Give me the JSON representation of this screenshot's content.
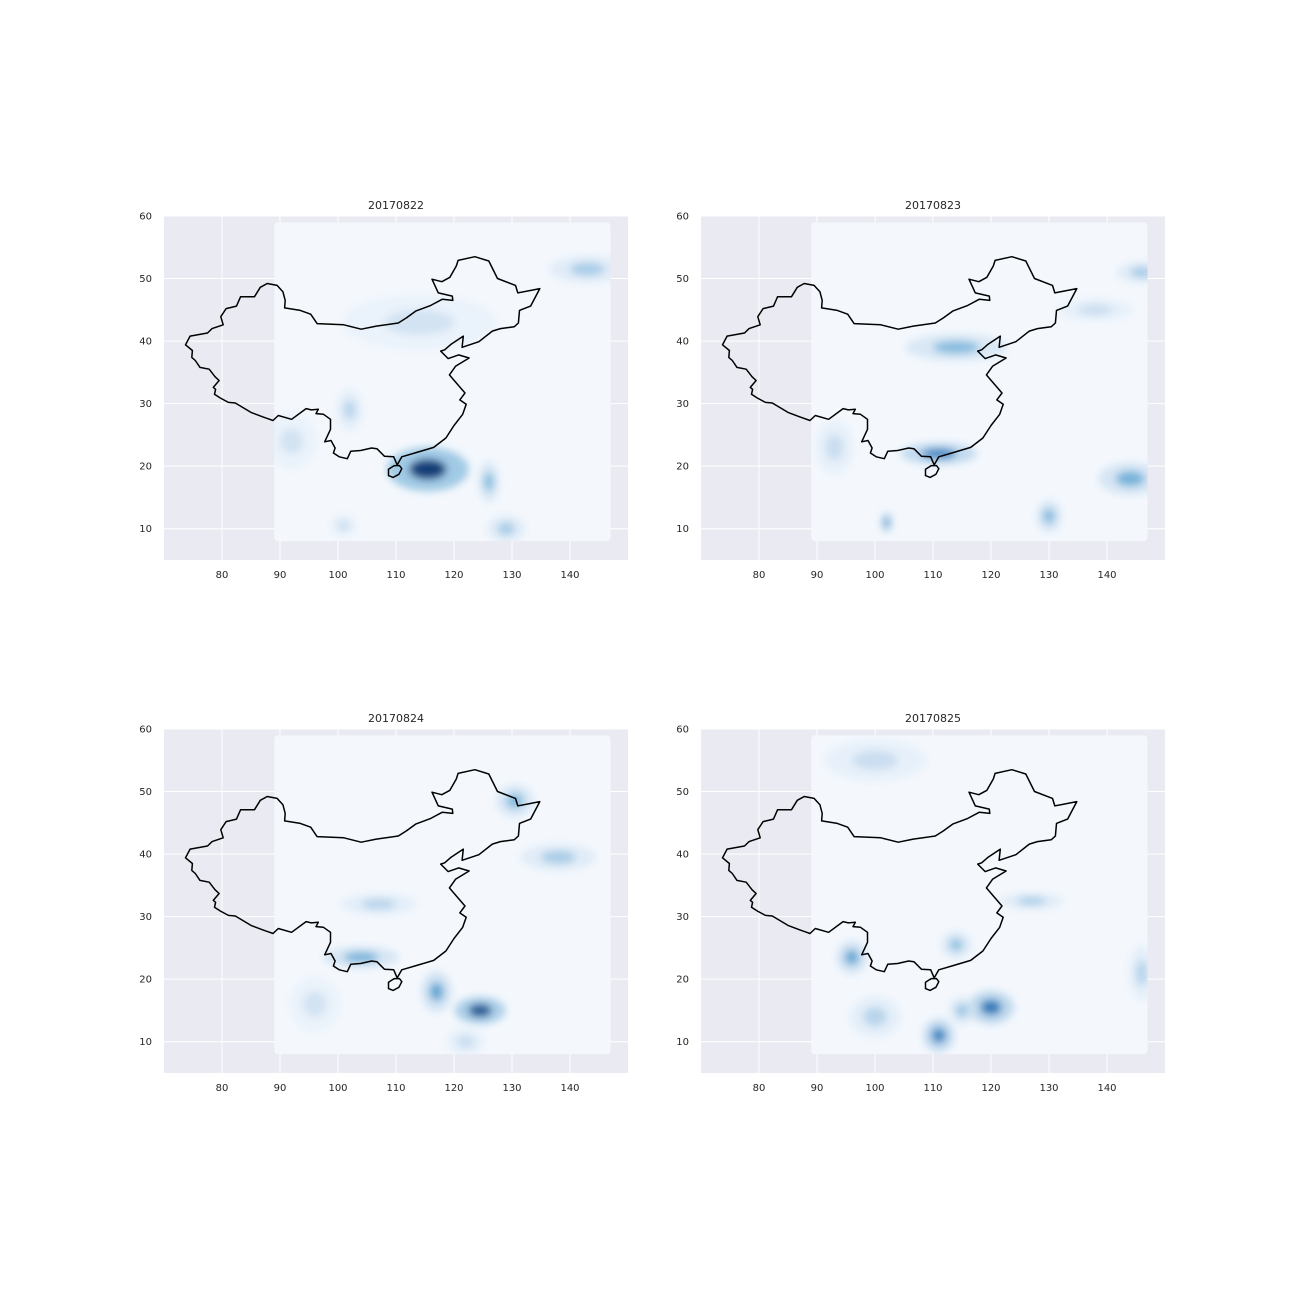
{
  "figure": {
    "background": "#ffffff",
    "plot_background": "#eaeaf2",
    "grid_color": "#ffffff",
    "colormap": "Blues"
  },
  "chart_data": [
    {
      "type": "heatmap",
      "title": "20170822",
      "xlabel": "",
      "ylabel": "",
      "xlim": [
        70,
        150
      ],
      "ylim": [
        5,
        60
      ],
      "xticks": [
        80,
        90,
        100,
        110,
        120,
        130,
        140
      ],
      "yticks": [
        10,
        20,
        30,
        40,
        50,
        60
      ],
      "grid": true,
      "data_extent": {
        "lon": [
          89,
          147
        ],
        "lat": [
          8,
          59
        ]
      },
      "hotspots": [
        {
          "lon": 115.5,
          "lat": 19.5,
          "intensity": 1.0,
          "spread_lon": 3.2,
          "spread_lat": 1.6
        },
        {
          "lon": 126,
          "lat": 17.5,
          "intensity": 0.45,
          "spread_lon": 0.8,
          "spread_lat": 1.5
        },
        {
          "lon": 143,
          "lat": 51.5,
          "intensity": 0.35,
          "spread_lon": 3,
          "spread_lat": 1
        },
        {
          "lon": 102,
          "lat": 29,
          "intensity": 0.3,
          "spread_lon": 1,
          "spread_lat": 1.5
        },
        {
          "lon": 114,
          "lat": 43,
          "intensity": 0.2,
          "spread_lon": 6,
          "spread_lat": 2
        },
        {
          "lon": 129,
          "lat": 10,
          "intensity": 0.35,
          "spread_lon": 1.5,
          "spread_lat": 1
        },
        {
          "lon": 101,
          "lat": 10.5,
          "intensity": 0.25,
          "spread_lon": 1,
          "spread_lat": 0.8
        },
        {
          "lon": 92,
          "lat": 24,
          "intensity": 0.2,
          "spread_lon": 2,
          "spread_lat": 2
        }
      ]
    },
    {
      "type": "heatmap",
      "title": "20170823",
      "xlabel": "",
      "ylabel": "",
      "xlim": [
        70,
        150
      ],
      "ylim": [
        5,
        60
      ],
      "xticks": [
        80,
        90,
        100,
        110,
        120,
        130,
        140
      ],
      "yticks": [
        10,
        20,
        30,
        40,
        50,
        60
      ],
      "grid": true,
      "data_extent": {
        "lon": [
          89,
          147
        ],
        "lat": [
          8,
          59
        ]
      },
      "hotspots": [
        {
          "lon": 111,
          "lat": 22,
          "intensity": 0.7,
          "spread_lon": 3,
          "spread_lat": 0.8
        },
        {
          "lon": 102,
          "lat": 11,
          "intensity": 0.6,
          "spread_lon": 0.5,
          "spread_lat": 0.8
        },
        {
          "lon": 114,
          "lat": 39,
          "intensity": 0.45,
          "spread_lon": 4,
          "spread_lat": 1
        },
        {
          "lon": 144,
          "lat": 18,
          "intensity": 0.5,
          "spread_lon": 2.5,
          "spread_lat": 1.2
        },
        {
          "lon": 130,
          "lat": 12,
          "intensity": 0.45,
          "spread_lon": 1,
          "spread_lat": 1.2
        },
        {
          "lon": 146,
          "lat": 51,
          "intensity": 0.35,
          "spread_lon": 2,
          "spread_lat": 0.8
        },
        {
          "lon": 138,
          "lat": 45,
          "intensity": 0.25,
          "spread_lon": 3,
          "spread_lat": 0.8
        },
        {
          "lon": 93,
          "lat": 23,
          "intensity": 0.25,
          "spread_lon": 1.5,
          "spread_lat": 2
        }
      ]
    },
    {
      "type": "heatmap",
      "title": "20170824",
      "xlabel": "",
      "ylabel": "",
      "xlim": [
        70,
        150
      ],
      "ylim": [
        5,
        60
      ],
      "xticks": [
        80,
        90,
        100,
        110,
        120,
        130,
        140
      ],
      "yticks": [
        10,
        20,
        30,
        40,
        50,
        60
      ],
      "grid": true,
      "data_extent": {
        "lon": [
          89,
          147
        ],
        "lat": [
          8,
          59
        ]
      },
      "hotspots": [
        {
          "lon": 124.5,
          "lat": 15,
          "intensity": 0.9,
          "spread_lon": 2,
          "spread_lat": 1
        },
        {
          "lon": 117,
          "lat": 18,
          "intensity": 0.55,
          "spread_lon": 1.2,
          "spread_lat": 1.5
        },
        {
          "lon": 104,
          "lat": 23.5,
          "intensity": 0.5,
          "spread_lon": 3,
          "spread_lat": 0.8
        },
        {
          "lon": 130.5,
          "lat": 48.5,
          "intensity": 0.45,
          "spread_lon": 1.5,
          "spread_lat": 1.2
        },
        {
          "lon": 138,
          "lat": 39.5,
          "intensity": 0.35,
          "spread_lon": 3,
          "spread_lat": 1
        },
        {
          "lon": 107,
          "lat": 32,
          "intensity": 0.3,
          "spread_lon": 3,
          "spread_lat": 0.8
        },
        {
          "lon": 122,
          "lat": 10,
          "intensity": 0.25,
          "spread_lon": 1.5,
          "spread_lat": 1
        },
        {
          "lon": 96,
          "lat": 16,
          "intensity": 0.2,
          "spread_lon": 2,
          "spread_lat": 2
        }
      ]
    },
    {
      "type": "heatmap",
      "title": "20170825",
      "xlabel": "",
      "ylabel": "",
      "xlim": [
        70,
        150
      ],
      "ylim": [
        5,
        60
      ],
      "xticks": [
        80,
        90,
        100,
        110,
        120,
        130,
        140
      ],
      "yticks": [
        10,
        20,
        30,
        40,
        50,
        60
      ],
      "grid": true,
      "data_extent": {
        "lon": [
          89,
          147
        ],
        "lat": [
          8,
          59
        ]
      },
      "hotspots": [
        {
          "lon": 120,
          "lat": 15.5,
          "intensity": 0.75,
          "spread_lon": 1.8,
          "spread_lat": 1.2
        },
        {
          "lon": 111,
          "lat": 11,
          "intensity": 0.7,
          "spread_lon": 1.2,
          "spread_lat": 1.2
        },
        {
          "lon": 96,
          "lat": 23.5,
          "intensity": 0.55,
          "spread_lon": 1.2,
          "spread_lat": 1.2
        },
        {
          "lon": 114,
          "lat": 25.5,
          "intensity": 0.4,
          "spread_lon": 1.2,
          "spread_lat": 1
        },
        {
          "lon": 115,
          "lat": 15,
          "intensity": 0.4,
          "spread_lon": 1,
          "spread_lat": 1
        },
        {
          "lon": 127,
          "lat": 32.5,
          "intensity": 0.35,
          "spread_lon": 2.5,
          "spread_lat": 0.6
        },
        {
          "lon": 146,
          "lat": 21,
          "intensity": 0.3,
          "spread_lon": 1,
          "spread_lat": 2
        },
        {
          "lon": 100,
          "lat": 14,
          "intensity": 0.3,
          "spread_lon": 2,
          "spread_lat": 1.5
        },
        {
          "lon": 100,
          "lat": 55,
          "intensity": 0.25,
          "spread_lon": 4,
          "spread_lat": 1.5
        }
      ]
    }
  ],
  "map_outline": {
    "name": "china-border",
    "color": "#000000",
    "lon_lat": [
      [
        73.7,
        39.4
      ],
      [
        74.5,
        40.8
      ],
      [
        77.5,
        41.3
      ],
      [
        78.3,
        42.0
      ],
      [
        80.2,
        42.6
      ],
      [
        79.8,
        43.9
      ],
      [
        80.7,
        45.2
      ],
      [
        82.5,
        45.6
      ],
      [
        83.2,
        47.1
      ],
      [
        85.6,
        47.1
      ],
      [
        86.6,
        48.6
      ],
      [
        87.8,
        49.2
      ],
      [
        89.5,
        48.9
      ],
      [
        90.5,
        47.9
      ],
      [
        90.9,
        46.5
      ],
      [
        90.8,
        45.3
      ],
      [
        93.5,
        44.9
      ],
      [
        95.3,
        44.3
      ],
      [
        96.4,
        42.8
      ],
      [
        101.0,
        42.6
      ],
      [
        104.0,
        41.9
      ],
      [
        106.6,
        42.4
      ],
      [
        110.4,
        42.9
      ],
      [
        111.8,
        43.7
      ],
      [
        113.4,
        44.8
      ],
      [
        116.0,
        45.7
      ],
      [
        118.0,
        46.7
      ],
      [
        119.8,
        46.5
      ],
      [
        119.7,
        47.2
      ],
      [
        117.3,
        47.7
      ],
      [
        116.2,
        49.9
      ],
      [
        117.9,
        49.5
      ],
      [
        119.3,
        50.2
      ],
      [
        120.4,
        52.0
      ],
      [
        120.7,
        52.9
      ],
      [
        123.6,
        53.5
      ],
      [
        126.0,
        52.8
      ],
      [
        127.5,
        50.0
      ],
      [
        130.6,
        48.9
      ],
      [
        131.0,
        47.7
      ],
      [
        134.8,
        48.4
      ],
      [
        133.2,
        45.6
      ],
      [
        131.3,
        44.9
      ],
      [
        131.1,
        42.9
      ],
      [
        130.4,
        42.3
      ],
      [
        128.0,
        42.0
      ],
      [
        126.6,
        41.6
      ],
      [
        124.3,
        39.9
      ],
      [
        121.4,
        39.0
      ],
      [
        121.6,
        40.8
      ],
      [
        119.5,
        39.5
      ],
      [
        118.4,
        38.6
      ],
      [
        117.7,
        38.4
      ],
      [
        119.0,
        37.2
      ],
      [
        120.8,
        37.8
      ],
      [
        122.6,
        37.3
      ],
      [
        120.3,
        36.0
      ],
      [
        119.2,
        34.6
      ],
      [
        120.5,
        33.2
      ],
      [
        121.9,
        31.7
      ],
      [
        121.0,
        30.6
      ],
      [
        122.1,
        29.9
      ],
      [
        121.5,
        28.3
      ],
      [
        120.0,
        26.5
      ],
      [
        118.6,
        24.5
      ],
      [
        116.5,
        23.0
      ],
      [
        113.6,
        22.2
      ],
      [
        111.0,
        21.5
      ],
      [
        110.2,
        20.2
      ],
      [
        109.6,
        21.5
      ],
      [
        108.0,
        21.6
      ],
      [
        106.7,
        22.8
      ],
      [
        105.8,
        22.9
      ],
      [
        103.9,
        22.5
      ],
      [
        102.2,
        22.4
      ],
      [
        101.6,
        21.2
      ],
      [
        100.2,
        21.5
      ],
      [
        99.2,
        22.1
      ],
      [
        99.5,
        22.9
      ],
      [
        98.8,
        24.1
      ],
      [
        97.7,
        23.9
      ],
      [
        98.7,
        25.9
      ],
      [
        98.7,
        27.5
      ],
      [
        97.5,
        28.3
      ],
      [
        96.2,
        28.4
      ],
      [
        96.6,
        29.1
      ],
      [
        95.4,
        29.0
      ],
      [
        94.5,
        29.2
      ],
      [
        92.0,
        27.5
      ],
      [
        89.7,
        28.1
      ],
      [
        88.8,
        27.3
      ],
      [
        87.0,
        27.9
      ],
      [
        85.0,
        28.6
      ],
      [
        82.3,
        30.1
      ],
      [
        81.1,
        30.2
      ],
      [
        79.7,
        30.9
      ],
      [
        78.7,
        31.5
      ],
      [
        78.9,
        32.3
      ],
      [
        78.5,
        32.6
      ],
      [
        79.5,
        33.7
      ],
      [
        78.8,
        34.3
      ],
      [
        77.8,
        35.5
      ],
      [
        76.2,
        35.8
      ],
      [
        75.4,
        36.9
      ],
      [
        74.8,
        37.4
      ],
      [
        74.9,
        38.5
      ],
      [
        73.7,
        39.4
      ]
    ],
    "hainan_lon_lat": [
      [
        108.7,
        18.5
      ],
      [
        109.5,
        18.2
      ],
      [
        110.5,
        18.7
      ],
      [
        111.0,
        19.6
      ],
      [
        110.6,
        20.1
      ],
      [
        109.7,
        20.1
      ],
      [
        108.7,
        19.5
      ],
      [
        108.7,
        18.5
      ]
    ]
  }
}
